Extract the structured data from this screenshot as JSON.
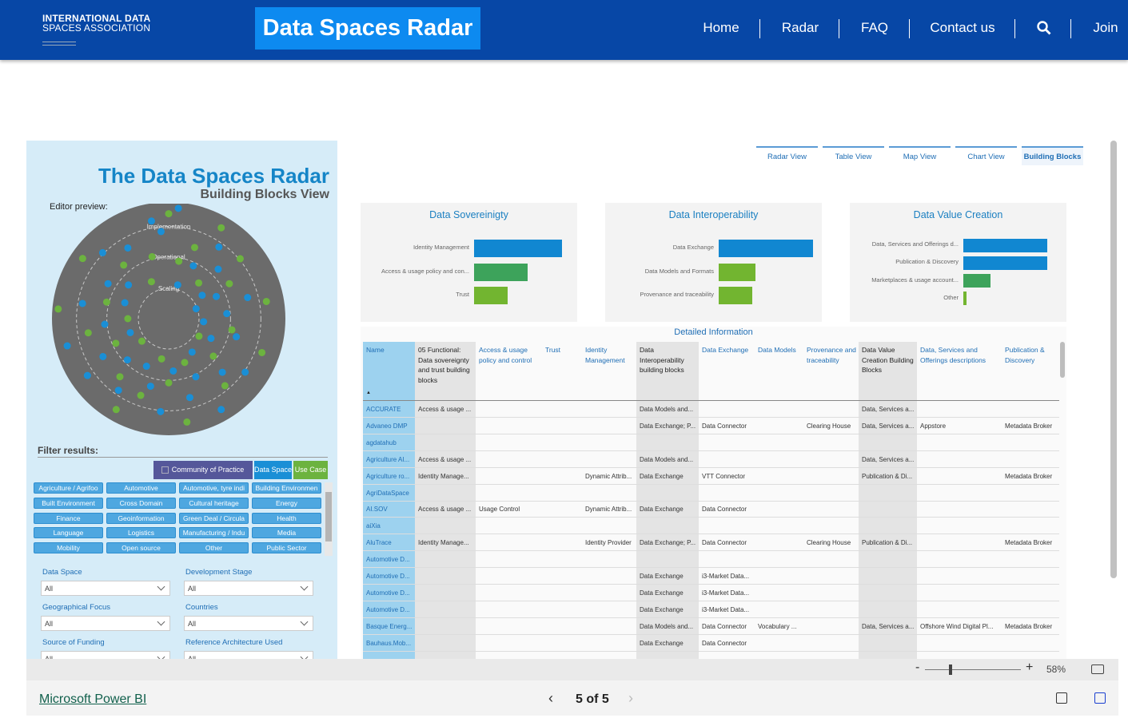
{
  "header": {
    "logo": [
      "INTERNATIONAL DATA",
      "SPACES ASSOCIATION"
    ],
    "title": "Data Spaces Radar",
    "nav": [
      "Home",
      "Radar",
      "FAQ",
      "Contact us",
      "Join"
    ]
  },
  "tabs": {
    "items": [
      "Radar View",
      "Table View",
      "Map View",
      "Chart View",
      "Building Blocks"
    ],
    "active": 4
  },
  "editor_note": "Editor preview:",
  "chart_data": [
    {
      "type": "polar",
      "title": "The Data Spaces Radar",
      "subtitle": "Building Blocks View",
      "rlim": [
        0,
        1
      ],
      "rticks": [
        {
          "value": 0.79,
          "label": "Implementation"
        },
        {
          "value": 0.53,
          "label": "Operational"
        },
        {
          "value": 0.26,
          "label": "Scaling"
        }
      ],
      "series": [
        {
          "name": "Community of Practice",
          "color": "#55579a",
          "angles": [],
          "radii": []
        },
        {
          "name": "Data Space",
          "color": "#1a8fd6",
          "angles": [
            100,
            95,
            120,
            135,
            150,
            160,
            170,
            185,
            195,
            200,
            210,
            225,
            235,
            245,
            255,
            265,
            275,
            285,
            295,
            305,
            315,
            325,
            335,
            345,
            355,
            5,
            15,
            25,
            35,
            45,
            55,
            65,
            75,
            85,
            140,
            215,
            20,
            300
          ],
          "radii": [
            0.85,
            0.75,
            0.7,
            0.8,
            0.6,
            0.4,
            0.75,
            0.55,
            0.9,
            0.35,
            0.65,
            0.5,
            0.75,
            0.45,
            0.6,
            0.8,
            0.45,
            0.7,
            0.55,
            0.35,
            0.65,
            0.8,
            0.4,
            0.6,
            0.3,
            0.5,
            0.7,
            0.45,
            0.35,
            0.6,
            0.75,
            0.5,
            0.3,
            0.95,
            0.45,
            0.85,
            0.25,
            0.9
          ]
        },
        {
          "name": "Use Case",
          "color": "#6cb33f",
          "angles": [
            90,
            105,
            115,
            130,
            145,
            165,
            180,
            190,
            205,
            220,
            240,
            250,
            260,
            280,
            290,
            310,
            320,
            330,
            340,
            350,
            10,
            30,
            40,
            50,
            60,
            70,
            80,
            270,
            175,
            230
          ],
          "radii": [
            0.9,
            0.55,
            0.35,
            0.6,
            0.9,
            0.55,
            0.35,
            0.7,
            0.5,
            0.3,
            0.9,
            0.7,
            0.35,
            0.9,
            0.4,
            0.75,
            0.5,
            0.3,
            0.85,
            0.55,
            0.85,
            0.6,
            0.8,
            0.4,
            0.9,
            0.65,
            0.5,
            0.55,
            0.95,
            0.65
          ]
        }
      ]
    },
    {
      "type": "bar",
      "title": "Data Sovereinigty",
      "categories": [
        "Identity Management",
        "Access & usage policy and con...",
        "Trust"
      ],
      "values": [
        26,
        16,
        10
      ],
      "colors": [
        "#1187d1",
        "#3da35b",
        "#72b530"
      ]
    },
    {
      "type": "bar",
      "title": "Data Interoperability",
      "categories": [
        "Data Exchange",
        "Data Models and Formats",
        "Provenance and traceability"
      ],
      "values": [
        28,
        11,
        10
      ],
      "colors": [
        "#1187d1",
        "#72b530",
        "#72b530"
      ]
    },
    {
      "type": "bar",
      "title": "Data Value Creation",
      "categories": [
        "Data, Services and Offerings d...",
        "Publication & Discovery",
        "Marketplaces & usage account...",
        "Other"
      ],
      "values": [
        25,
        25,
        8,
        1
      ],
      "colors": [
        "#1187d1",
        "#1187d1",
        "#3da35b",
        "#72b530"
      ]
    }
  ],
  "filters": {
    "heading": "Filter results:",
    "tags": [
      "Agriculture / Agrifoo",
      "Automotive",
      "Automotive, tyre indi",
      "Building Environmen",
      "Built Environment",
      "Cross Domain",
      "Cultural heritage",
      "Energy",
      "Finance",
      "Geoinformation",
      "Green Deal / Circula",
      "Health",
      "Language",
      "Logistics",
      "Manufacturing / Indu",
      "Media",
      "Mobility",
      "Open source",
      "Other",
      "Public Sector"
    ],
    "dropdowns": [
      {
        "label": "Data Space",
        "value": "All"
      },
      {
        "label": "Development Stage",
        "value": "All"
      },
      {
        "label": "Geographical Focus",
        "value": "All"
      },
      {
        "label": "Countries",
        "value": "All"
      },
      {
        "label": "Source of Funding",
        "value": "All"
      },
      {
        "label": "Reference Architecture Used",
        "value": "All"
      }
    ]
  },
  "table": {
    "title": "Detailed Information",
    "columns": [
      "Name",
      "05 Functional: Data sovereignty and trust building blocks",
      "Access & usage policy and control",
      "Trust",
      "Identity Management",
      "Data Interoperability building blocks",
      "Data Exchange",
      "Data Models",
      "Provenance and traceability",
      "Data Value Creation Building Blocks",
      "Data, Services and Offerings descriptions",
      "Publication & Discovery"
    ],
    "shaded_columns": [
      1,
      5,
      9
    ],
    "rows": [
      [
        "ACCURATE",
        "Access & usage ...",
        null,
        null,
        null,
        "Data Models and...",
        null,
        null,
        null,
        "Data, Services a...",
        null,
        null
      ],
      [
        "Advaneo DMP",
        null,
        null,
        null,
        null,
        "Data Exchange; P...",
        "Data Connector",
        null,
        "Clearing House",
        "Data, Services a...",
        "Appstore",
        "Metadata Broker"
      ],
      [
        "agdatahub",
        null,
        null,
        null,
        null,
        null,
        null,
        null,
        null,
        null,
        null,
        null
      ],
      [
        "Agriculture AI...",
        "Access & usage ...",
        null,
        null,
        null,
        "Data Models and...",
        null,
        null,
        null,
        "Data, Services a...",
        null,
        null
      ],
      [
        "Agriculture ro...",
        "Identity Manage...",
        null,
        null,
        "Dynamic Attrib...",
        "Data Exchange",
        "VTT Connector",
        null,
        null,
        "Publication & Di...",
        null,
        "Metadata Broker"
      ],
      [
        "AgriDataSpace",
        null,
        null,
        null,
        null,
        null,
        null,
        null,
        null,
        null,
        null,
        null
      ],
      [
        "AI.SOV",
        "Access & usage ...",
        "Usage Control",
        null,
        "Dynamic Attrib...",
        "Data Exchange",
        "Data Connector",
        null,
        null,
        null,
        null,
        null
      ],
      [
        "aiXia",
        null,
        null,
        null,
        null,
        null,
        null,
        null,
        null,
        null,
        null,
        null
      ],
      [
        "AluTrace",
        "Identity Manage...",
        null,
        null,
        "Identity Provider",
        "Data Exchange; P...",
        "Data Connector",
        null,
        "Clearing House",
        "Publication & Di...",
        null,
        "Metadata Broker"
      ],
      [
        "Automotive D...",
        null,
        null,
        null,
        null,
        null,
        null,
        null,
        null,
        null,
        null,
        null
      ],
      [
        "Automotive D...",
        null,
        null,
        null,
        null,
        "Data Exchange",
        "i3-Market Data...",
        null,
        null,
        null,
        null,
        null
      ],
      [
        "Automotive D...",
        null,
        null,
        null,
        null,
        "Data Exchange",
        "i3-Market Data...",
        null,
        null,
        null,
        null,
        null
      ],
      [
        "Automotive D...",
        null,
        null,
        null,
        null,
        "Data Exchange",
        "i3-Market Data...",
        null,
        null,
        null,
        null,
        null
      ],
      [
        "Basque Energ...",
        null,
        null,
        null,
        null,
        "Data Models and...",
        "Data Connector",
        "Vocabulary ...",
        null,
        "Data, Services a...",
        "Offshore Wind Digital Pl...",
        "Metadata Broker"
      ],
      [
        "Bauhaus.Mob...",
        null,
        null,
        null,
        null,
        "Data Exchange",
        "Data Connector",
        null,
        null,
        null,
        null,
        null
      ]
    ]
  },
  "viewer": {
    "zoom": "58%",
    "page": "5 of 5",
    "brand": "Microsoft Power BI"
  }
}
